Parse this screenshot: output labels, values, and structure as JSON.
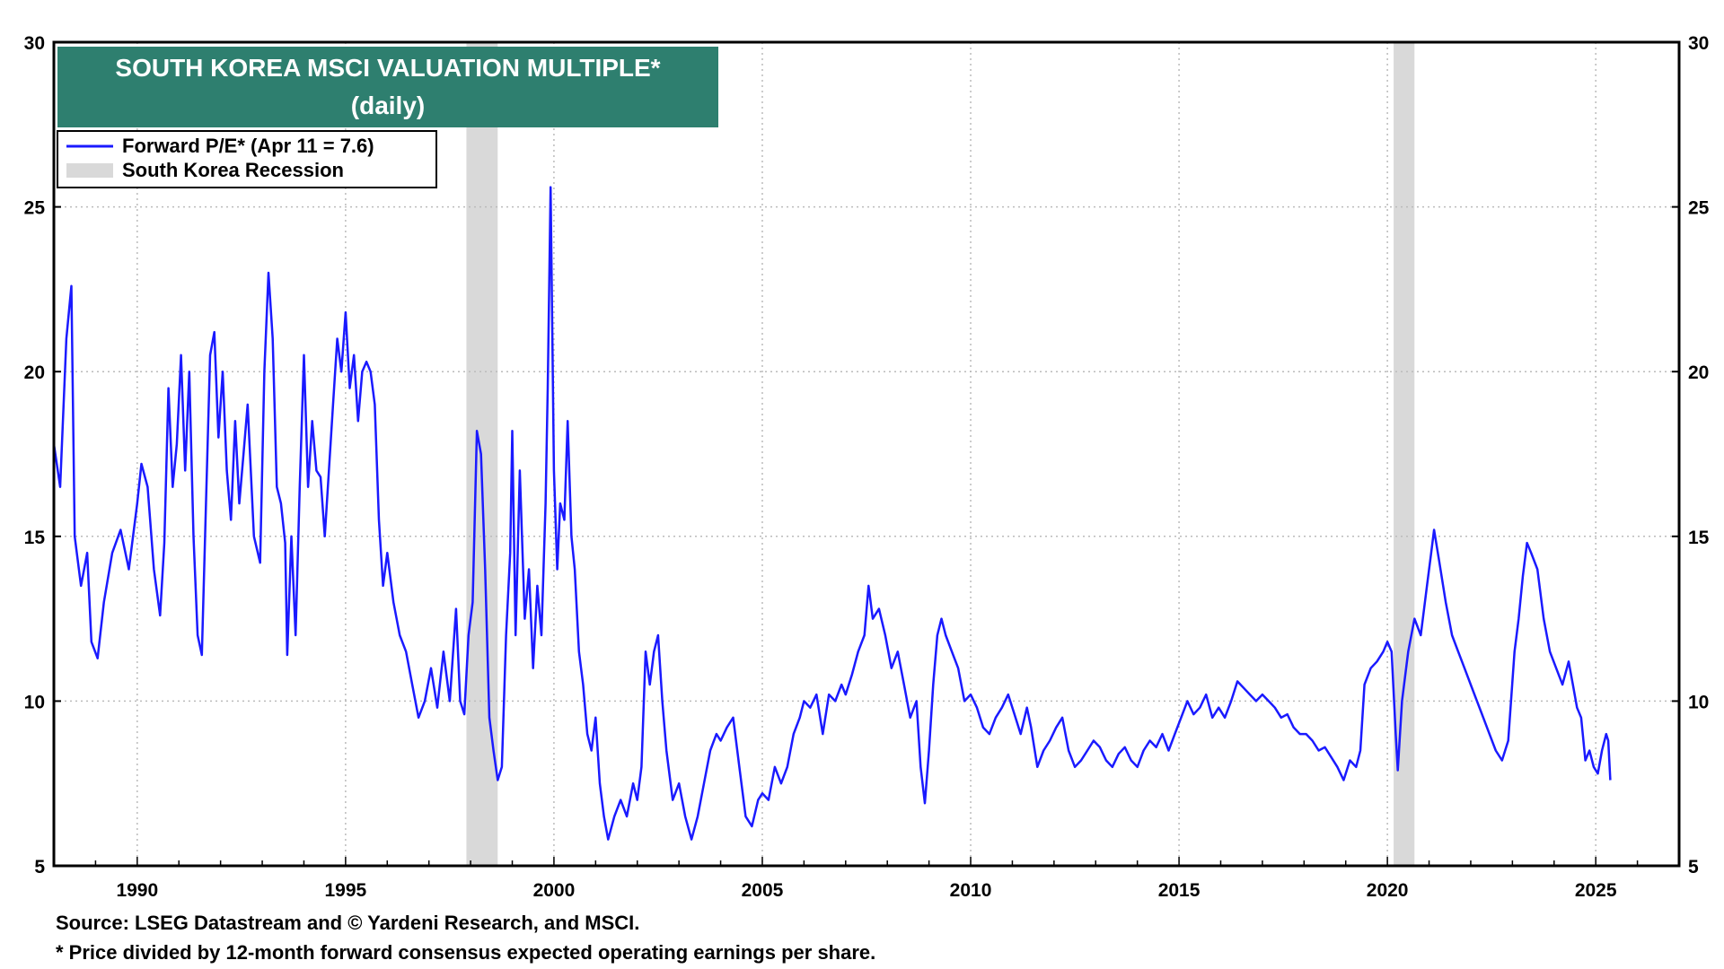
{
  "chart_data": {
    "type": "line",
    "title": "SOUTH KOREA MSCI VALUATION MULTIPLE*",
    "subtitle": "(daily)",
    "xlabel": "",
    "ylabel": "",
    "xlim": [
      1988.0,
      2027.0
    ],
    "ylim": [
      5,
      30
    ],
    "y_ticks": [
      5,
      10,
      15,
      20,
      25,
      30
    ],
    "x_ticks": [
      1990,
      1995,
      2000,
      2005,
      2010,
      2015,
      2020,
      2025
    ],
    "grid": true,
    "legend_position": "top-left",
    "series": [
      {
        "name": "Forward P/E* (Apr 11 = 7.6)",
        "color": "#1a1aff",
        "points": [
          [
            1988.0,
            17.8
          ],
          [
            1988.15,
            16.5
          ],
          [
            1988.3,
            21.0
          ],
          [
            1988.42,
            22.6
          ],
          [
            1988.5,
            15.0
          ],
          [
            1988.65,
            13.5
          ],
          [
            1988.8,
            14.5
          ],
          [
            1988.9,
            11.8
          ],
          [
            1989.05,
            11.3
          ],
          [
            1989.2,
            13.0
          ],
          [
            1989.4,
            14.5
          ],
          [
            1989.6,
            15.2
          ],
          [
            1989.8,
            14.0
          ],
          [
            1990.0,
            16.0
          ],
          [
            1990.1,
            17.2
          ],
          [
            1990.25,
            16.5
          ],
          [
            1990.4,
            14.0
          ],
          [
            1990.55,
            12.6
          ],
          [
            1990.65,
            14.8
          ],
          [
            1990.75,
            19.5
          ],
          [
            1990.85,
            16.5
          ],
          [
            1990.95,
            17.8
          ],
          [
            1991.05,
            20.5
          ],
          [
            1991.15,
            17.0
          ],
          [
            1991.25,
            20.0
          ],
          [
            1991.35,
            15.0
          ],
          [
            1991.45,
            12.0
          ],
          [
            1991.55,
            11.4
          ],
          [
            1991.65,
            16.0
          ],
          [
            1991.75,
            20.5
          ],
          [
            1991.85,
            21.2
          ],
          [
            1991.95,
            18.0
          ],
          [
            1992.05,
            20.0
          ],
          [
            1992.15,
            17.0
          ],
          [
            1992.25,
            15.5
          ],
          [
            1992.35,
            18.5
          ],
          [
            1992.45,
            16.0
          ],
          [
            1992.55,
            17.5
          ],
          [
            1992.65,
            19.0
          ],
          [
            1992.8,
            15.0
          ],
          [
            1992.95,
            14.2
          ],
          [
            1993.05,
            20.0
          ],
          [
            1993.15,
            23.0
          ],
          [
            1993.25,
            21.0
          ],
          [
            1993.35,
            16.5
          ],
          [
            1993.45,
            16.0
          ],
          [
            1993.55,
            14.8
          ],
          [
            1993.6,
            11.4
          ],
          [
            1993.7,
            15.0
          ],
          [
            1993.8,
            12.0
          ],
          [
            1993.9,
            16.5
          ],
          [
            1994.0,
            20.5
          ],
          [
            1994.1,
            16.5
          ],
          [
            1994.2,
            18.5
          ],
          [
            1994.3,
            17.0
          ],
          [
            1994.4,
            16.8
          ],
          [
            1994.5,
            15.0
          ],
          [
            1994.6,
            17.0
          ],
          [
            1994.7,
            19.0
          ],
          [
            1994.8,
            21.0
          ],
          [
            1994.9,
            20.0
          ],
          [
            1995.0,
            21.8
          ],
          [
            1995.1,
            19.5
          ],
          [
            1995.2,
            20.5
          ],
          [
            1995.3,
            18.5
          ],
          [
            1995.4,
            20.0
          ],
          [
            1995.5,
            20.3
          ],
          [
            1995.6,
            20.0
          ],
          [
            1995.7,
            19.0
          ],
          [
            1995.8,
            15.5
          ],
          [
            1995.9,
            13.5
          ],
          [
            1996.0,
            14.5
          ],
          [
            1996.15,
            13.0
          ],
          [
            1996.3,
            12.0
          ],
          [
            1996.45,
            11.5
          ],
          [
            1996.6,
            10.5
          ],
          [
            1996.75,
            9.5
          ],
          [
            1996.9,
            10.0
          ],
          [
            1997.05,
            11.0
          ],
          [
            1997.2,
            9.8
          ],
          [
            1997.35,
            11.5
          ],
          [
            1997.5,
            10.0
          ],
          [
            1997.65,
            12.8
          ],
          [
            1997.75,
            10.0
          ],
          [
            1997.85,
            9.6
          ],
          [
            1997.95,
            12.0
          ],
          [
            1998.05,
            13.0
          ],
          [
            1998.15,
            18.2
          ],
          [
            1998.25,
            17.5
          ],
          [
            1998.35,
            14.0
          ],
          [
            1998.45,
            9.5
          ],
          [
            1998.55,
            8.5
          ],
          [
            1998.65,
            7.6
          ],
          [
            1998.75,
            8.0
          ],
          [
            1998.85,
            12.0
          ],
          [
            1998.95,
            14.5
          ],
          [
            1999.0,
            18.2
          ],
          [
            1999.08,
            12.0
          ],
          [
            1999.18,
            17.0
          ],
          [
            1999.3,
            12.5
          ],
          [
            1999.4,
            14.0
          ],
          [
            1999.5,
            11.0
          ],
          [
            1999.6,
            13.5
          ],
          [
            1999.7,
            12.0
          ],
          [
            1999.8,
            16.0
          ],
          [
            1999.85,
            19.5
          ],
          [
            1999.92,
            25.6
          ],
          [
            2000.0,
            17.0
          ],
          [
            2000.08,
            14.0
          ],
          [
            2000.15,
            16.0
          ],
          [
            2000.25,
            15.5
          ],
          [
            2000.33,
            18.5
          ],
          [
            2000.42,
            15.0
          ],
          [
            2000.5,
            14.0
          ],
          [
            2000.6,
            11.5
          ],
          [
            2000.7,
            10.5
          ],
          [
            2000.8,
            9.0
          ],
          [
            2000.9,
            8.5
          ],
          [
            2001.0,
            9.5
          ],
          [
            2001.1,
            7.5
          ],
          [
            2001.2,
            6.5
          ],
          [
            2001.3,
            5.8
          ],
          [
            2001.45,
            6.5
          ],
          [
            2001.6,
            7.0
          ],
          [
            2001.75,
            6.5
          ],
          [
            2001.9,
            7.5
          ],
          [
            2002.0,
            7.0
          ],
          [
            2002.1,
            8.0
          ],
          [
            2002.2,
            11.5
          ],
          [
            2002.3,
            10.5
          ],
          [
            2002.4,
            11.5
          ],
          [
            2002.5,
            12.0
          ],
          [
            2002.6,
            10.0
          ],
          [
            2002.7,
            8.5
          ],
          [
            2002.85,
            7.0
          ],
          [
            2003.0,
            7.5
          ],
          [
            2003.15,
            6.5
          ],
          [
            2003.3,
            5.8
          ],
          [
            2003.45,
            6.5
          ],
          [
            2003.6,
            7.5
          ],
          [
            2003.75,
            8.5
          ],
          [
            2003.9,
            9.0
          ],
          [
            2004.0,
            8.8
          ],
          [
            2004.15,
            9.2
          ],
          [
            2004.3,
            9.5
          ],
          [
            2004.45,
            8.0
          ],
          [
            2004.6,
            6.5
          ],
          [
            2004.75,
            6.2
          ],
          [
            2004.9,
            7.0
          ],
          [
            2005.0,
            7.2
          ],
          [
            2005.15,
            7.0
          ],
          [
            2005.3,
            8.0
          ],
          [
            2005.45,
            7.5
          ],
          [
            2005.6,
            8.0
          ],
          [
            2005.75,
            9.0
          ],
          [
            2005.9,
            9.5
          ],
          [
            2006.0,
            10.0
          ],
          [
            2006.15,
            9.8
          ],
          [
            2006.3,
            10.2
          ],
          [
            2006.45,
            9.0
          ],
          [
            2006.6,
            10.2
          ],
          [
            2006.75,
            10.0
          ],
          [
            2006.9,
            10.5
          ],
          [
            2007.0,
            10.2
          ],
          [
            2007.15,
            10.8
          ],
          [
            2007.3,
            11.5
          ],
          [
            2007.45,
            12.0
          ],
          [
            2007.55,
            13.5
          ],
          [
            2007.65,
            12.5
          ],
          [
            2007.8,
            12.8
          ],
          [
            2007.95,
            12.0
          ],
          [
            2008.1,
            11.0
          ],
          [
            2008.25,
            11.5
          ],
          [
            2008.4,
            10.5
          ],
          [
            2008.55,
            9.5
          ],
          [
            2008.7,
            10.0
          ],
          [
            2008.8,
            8.0
          ],
          [
            2008.9,
            6.9
          ],
          [
            2009.0,
            8.5
          ],
          [
            2009.1,
            10.5
          ],
          [
            2009.2,
            12.0
          ],
          [
            2009.3,
            12.5
          ],
          [
            2009.4,
            12.0
          ],
          [
            2009.55,
            11.5
          ],
          [
            2009.7,
            11.0
          ],
          [
            2009.85,
            10.0
          ],
          [
            2010.0,
            10.2
          ],
          [
            2010.15,
            9.8
          ],
          [
            2010.3,
            9.2
          ],
          [
            2010.45,
            9.0
          ],
          [
            2010.6,
            9.5
          ],
          [
            2010.75,
            9.8
          ],
          [
            2010.9,
            10.2
          ],
          [
            2011.05,
            9.6
          ],
          [
            2011.2,
            9.0
          ],
          [
            2011.35,
            9.8
          ],
          [
            2011.45,
            9.2
          ],
          [
            2011.6,
            8.0
          ],
          [
            2011.75,
            8.5
          ],
          [
            2011.9,
            8.8
          ],
          [
            2012.05,
            9.2
          ],
          [
            2012.2,
            9.5
          ],
          [
            2012.35,
            8.5
          ],
          [
            2012.5,
            8.0
          ],
          [
            2012.65,
            8.2
          ],
          [
            2012.8,
            8.5
          ],
          [
            2012.95,
            8.8
          ],
          [
            2013.1,
            8.6
          ],
          [
            2013.25,
            8.2
          ],
          [
            2013.4,
            8.0
          ],
          [
            2013.55,
            8.4
          ],
          [
            2013.7,
            8.6
          ],
          [
            2013.85,
            8.2
          ],
          [
            2014.0,
            8.0
          ],
          [
            2014.15,
            8.5
          ],
          [
            2014.3,
            8.8
          ],
          [
            2014.45,
            8.6
          ],
          [
            2014.6,
            9.0
          ],
          [
            2014.75,
            8.5
          ],
          [
            2014.9,
            9.0
          ],
          [
            2015.05,
            9.5
          ],
          [
            2015.2,
            10.0
          ],
          [
            2015.35,
            9.6
          ],
          [
            2015.5,
            9.8
          ],
          [
            2015.65,
            10.2
          ],
          [
            2015.8,
            9.5
          ],
          [
            2015.95,
            9.8
          ],
          [
            2016.1,
            9.5
          ],
          [
            2016.25,
            10.0
          ],
          [
            2016.4,
            10.6
          ],
          [
            2016.55,
            10.4
          ],
          [
            2016.7,
            10.2
          ],
          [
            2016.85,
            10.0
          ],
          [
            2017.0,
            10.2
          ],
          [
            2017.15,
            10.0
          ],
          [
            2017.3,
            9.8
          ],
          [
            2017.45,
            9.5
          ],
          [
            2017.6,
            9.6
          ],
          [
            2017.75,
            9.2
          ],
          [
            2017.9,
            9.0
          ],
          [
            2018.05,
            9.0
          ],
          [
            2018.2,
            8.8
          ],
          [
            2018.35,
            8.5
          ],
          [
            2018.5,
            8.6
          ],
          [
            2018.65,
            8.3
          ],
          [
            2018.8,
            8.0
          ],
          [
            2018.95,
            7.6
          ],
          [
            2019.1,
            8.2
          ],
          [
            2019.25,
            8.0
          ],
          [
            2019.35,
            8.5
          ],
          [
            2019.45,
            10.5
          ],
          [
            2019.6,
            11.0
          ],
          [
            2019.75,
            11.2
          ],
          [
            2019.9,
            11.5
          ],
          [
            2020.0,
            11.8
          ],
          [
            2020.1,
            11.5
          ],
          [
            2020.2,
            9.0
          ],
          [
            2020.25,
            7.9
          ],
          [
            2020.35,
            10.0
          ],
          [
            2020.5,
            11.5
          ],
          [
            2020.65,
            12.5
          ],
          [
            2020.8,
            12.0
          ],
          [
            2020.95,
            13.5
          ],
          [
            2021.05,
            14.5
          ],
          [
            2021.12,
            15.2
          ],
          [
            2021.25,
            14.2
          ],
          [
            2021.4,
            13.0
          ],
          [
            2021.55,
            12.0
          ],
          [
            2021.7,
            11.5
          ],
          [
            2021.85,
            11.0
          ],
          [
            2022.0,
            10.5
          ],
          [
            2022.15,
            10.0
          ],
          [
            2022.3,
            9.5
          ],
          [
            2022.45,
            9.0
          ],
          [
            2022.6,
            8.5
          ],
          [
            2022.75,
            8.2
          ],
          [
            2022.9,
            8.8
          ],
          [
            2023.05,
            11.5
          ],
          [
            2023.15,
            12.5
          ],
          [
            2023.25,
            13.8
          ],
          [
            2023.35,
            14.8
          ],
          [
            2023.45,
            14.5
          ],
          [
            2023.6,
            14.0
          ],
          [
            2023.75,
            12.5
          ],
          [
            2023.9,
            11.5
          ],
          [
            2024.05,
            11.0
          ],
          [
            2024.2,
            10.5
          ],
          [
            2024.35,
            11.2
          ],
          [
            2024.45,
            10.5
          ],
          [
            2024.55,
            9.8
          ],
          [
            2024.65,
            9.5
          ],
          [
            2024.75,
            8.2
          ],
          [
            2024.85,
            8.5
          ],
          [
            2024.95,
            8.0
          ],
          [
            2025.05,
            7.8
          ],
          [
            2025.15,
            8.5
          ],
          [
            2025.25,
            9.0
          ],
          [
            2025.3,
            8.8
          ],
          [
            2025.35,
            7.6
          ]
        ]
      }
    ],
    "recessions": [
      {
        "start": 1997.9,
        "end": 1998.65
      },
      {
        "start": 2020.15,
        "end": 2020.65
      }
    ],
    "recession_color": "#d9d9d9"
  },
  "legend": {
    "series_label": "Forward P/E* (Apr 11 = 7.6)",
    "recession_label": "South Korea Recession"
  },
  "colors": {
    "title_bg": "#2e7f6f",
    "line": "#1a1aff",
    "grid": "#bbbbbb",
    "recession": "#d9d9d9"
  },
  "footer": {
    "source": "Source: LSEG Datastream and © Yardeni Research, and MSCI.",
    "note": "* Price divided by 12-month forward consensus expected operating earnings per share."
  }
}
